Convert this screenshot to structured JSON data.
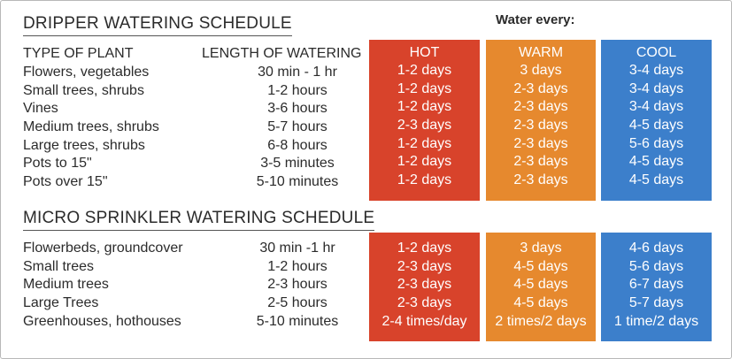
{
  "dripper": {
    "title": "DRIPPER WATERING SCHEDULE",
    "plant_header": "TYPE OF PLANT",
    "length_header": "LENGTH OF WATERING",
    "rows": [
      {
        "plant": "Flowers, vegetables",
        "length": "30 min - 1 hr",
        "hot": "1-2 days",
        "warm": "3 days",
        "cool": "3-4 days"
      },
      {
        "plant": "Small trees, shrubs",
        "length": "1-2 hours",
        "hot": "1-2 days",
        "warm": "2-3 days",
        "cool": "3-4 days"
      },
      {
        "plant": "Vines",
        "length": "3-6 hours",
        "hot": "1-2 days",
        "warm": "2-3 days",
        "cool": "3-4 days"
      },
      {
        "plant": "Medium trees, shrubs",
        "length": "5-7 hours",
        "hot": "2-3 days",
        "warm": "2-3 days",
        "cool": "4-5 days"
      },
      {
        "plant": "Large trees, shrubs",
        "length": "6-8 hours",
        "hot": "1-2 days",
        "warm": "2-3 days",
        "cool": "5-6 days"
      },
      {
        "plant": "Pots to 15\"",
        "length": "3-5 minutes",
        "hot": "1-2 days",
        "warm": "2-3 days",
        "cool": "4-5 days"
      },
      {
        "plant": "Pots over 15\"",
        "length": "5-10 minutes",
        "hot": "1-2 days",
        "warm": "2-3 days",
        "cool": "4-5 days"
      }
    ]
  },
  "water_every": "Water every:",
  "climate": {
    "hot": "HOT",
    "warm": "WARM",
    "cool": "COOL"
  },
  "sprinkler": {
    "title": "MICRO SPRINKLER WATERING SCHEDULE",
    "rows": [
      {
        "plant": "Flowerbeds, groundcover",
        "length": "30 min -1 hr",
        "hot": "1-2 days",
        "warm": "3 days",
        "cool": "4-6 days"
      },
      {
        "plant": "Small trees",
        "length": "1-2 hours",
        "hot": "2-3 days",
        "warm": "4-5 days",
        "cool": "5-6 days"
      },
      {
        "plant": "Medium trees",
        "length": "2-3 hours",
        "hot": "2-3 days",
        "warm": "4-5 days",
        "cool": "6-7 days"
      },
      {
        "plant": "Large Trees",
        "length": "2-5 hours",
        "hot": "2-3 days",
        "warm": "4-5 days",
        "cool": "5-7 days"
      },
      {
        "plant": "Greenhouses, hothouses",
        "length": "5-10 minutes",
        "hot": "2-4 times/day",
        "warm": "2 times/2 days",
        "cool": "1 time/2 days"
      }
    ]
  },
  "colors": {
    "hot": "#d8432b",
    "warm": "#e6892e",
    "cool": "#3c7fcb"
  }
}
